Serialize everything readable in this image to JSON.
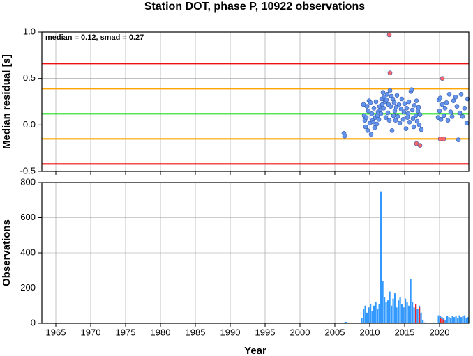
{
  "chart_data": [
    {
      "type": "scatter",
      "title": "Station DOT, phase P, 10922 observations",
      "ylabel": "Median residual [s]",
      "annotation": "median = 0.12, smad = 0.27",
      "xlim": [
        1963,
        2024.2
      ],
      "xticks": [
        1965,
        1970,
        1975,
        1980,
        1985,
        1990,
        1995,
        2000,
        2005,
        2010,
        2015,
        2020
      ],
      "ylim": [
        -0.5,
        1.0
      ],
      "yticks": [
        -0.5,
        {
          "value": 0,
          "label": "0.0"
        },
        0.5,
        {
          "value": 1,
          "label": "1.0"
        }
      ],
      "grid": true,
      "hlines": [
        {
          "value": 0.66,
          "color": "#ee1111"
        },
        {
          "value": 0.39,
          "color": "#ffa500"
        },
        {
          "value": 0.12,
          "color": "#22dd22"
        },
        {
          "value": -0.15,
          "color": "#ffa500"
        },
        {
          "value": -0.42,
          "color": "#ee1111"
        }
      ],
      "series": [
        {
          "color": "#6495ed",
          "x": [
            2006.3,
            2006.4,
            2009.1,
            2009.2,
            2009.3,
            2009.4,
            2009.5,
            2009.6,
            2009.7,
            2009.8,
            2009.9,
            2010.0,
            2010.1,
            2010.2,
            2010.3,
            2010.4,
            2010.5,
            2010.6,
            2010.7,
            2010.8,
            2010.9,
            2011.0,
            2011.1,
            2011.2,
            2011.3,
            2011.4,
            2011.5,
            2011.6,
            2011.7,
            2011.8,
            2011.9,
            2012.0,
            2012.1,
            2012.2,
            2012.3,
            2012.4,
            2012.5,
            2012.6,
            2012.7,
            2012.8,
            2012.9,
            2013.0,
            2013.1,
            2013.2,
            2013.3,
            2013.4,
            2013.5,
            2013.6,
            2013.7,
            2013.8,
            2013.9,
            2014.0,
            2014.2,
            2014.3,
            2014.5,
            2014.6,
            2014.8,
            2014.9,
            2015.0,
            2015.2,
            2015.3,
            2015.4,
            2015.5,
            2015.6,
            2015.7,
            2015.9,
            2016.0,
            2016.1,
            2016.2,
            2016.3,
            2016.4,
            2016.6,
            2016.7,
            2016.8,
            2016.9,
            2017.0,
            2017.1,
            2017.2,
            2017.4,
            2019.8,
            2019.9,
            2020.0,
            2020.1,
            2020.2,
            2020.4,
            2020.6,
            2020.8,
            2021.0,
            2021.2,
            2021.4,
            2021.6,
            2021.8,
            2022.0,
            2022.3,
            2022.5,
            2022.7,
            2022.9,
            2023.1,
            2023.3,
            2023.6,
            2023.9,
            2024.0
          ],
          "values": [
            -0.09,
            -0.12,
            0.22,
            0.1,
            0.05,
            -0.02,
            0.08,
            0.2,
            -0.06,
            0.15,
            0.26,
            0.02,
            0.24,
            -0.1,
            0.12,
            0.05,
            0.03,
            0.18,
            -0.03,
            0.08,
            0.25,
            0.01,
            0.1,
            0.14,
            0.06,
            0.2,
            0.16,
            0.12,
            0.28,
            0.22,
            0.35,
            0.18,
            0.3,
            0.25,
            0.08,
            0.27,
            0.33,
            0.13,
            0.22,
            0.05,
            0.37,
            0.2,
            0.31,
            -0.06,
            0.28,
            0.1,
            0.24,
            0.15,
            0.05,
            0.19,
            0.32,
            0.09,
            0.22,
            0.02,
            0.17,
            0.28,
            0.06,
            0.14,
            0.23,
            -0.04,
            0.18,
            0.08,
            0.12,
            0.25,
            0.03,
            0.36,
            0.38,
            0.16,
            0.07,
            -0.02,
            0.21,
            0.1,
            0.26,
            0.04,
            0.15,
            0.19,
            0.0,
            0.11,
            -0.05,
            0.08,
            0.27,
            0.15,
            0.29,
            0.06,
            0.22,
            0.1,
            0.18,
            0.24,
            0.05,
            0.33,
            0.14,
            0.09,
            0.26,
            0.3,
            0.2,
            -0.16,
            0.13,
            0.33,
            0.09,
            0.18,
            0.02,
            0.28
          ]
        },
        {
          "color": "#ff6666",
          "x": [
            2012.8,
            2012.9,
            2020.4,
            2016.7,
            2017.2,
            2020.1,
            2020.6
          ],
          "values": [
            0.97,
            0.56,
            0.5,
            -0.2,
            -0.22,
            -0.15,
            -0.15
          ]
        }
      ]
    },
    {
      "type": "histogram",
      "ylabel": "Observations",
      "xlabel": "Year",
      "xlim": [
        1963,
        2024.2
      ],
      "xticks": [
        1965,
        1970,
        1975,
        1980,
        1985,
        1990,
        1995,
        2000,
        2005,
        2010,
        2015,
        2020
      ],
      "ylim": [
        0,
        800
      ],
      "yticks": [
        0,
        200,
        400,
        600,
        800
      ],
      "grid": true,
      "bins": [
        2006,
        2006.25,
        2006.5,
        2006.75,
        2007,
        2007.25,
        2007.5,
        2007.75,
        2008,
        2008.25,
        2008.5,
        2008.75,
        2009,
        2009.25,
        2009.5,
        2009.75,
        2010,
        2010.25,
        2010.5,
        2010.75,
        2011,
        2011.25,
        2011.5,
        2011.75,
        2012,
        2012.25,
        2012.5,
        2012.75,
        2013,
        2013.25,
        2013.5,
        2013.75,
        2014,
        2014.25,
        2014.5,
        2014.75,
        2015,
        2015.25,
        2015.5,
        2015.75,
        2016,
        2016.25,
        2016.5,
        2016.75,
        2017,
        2017.25,
        2017.5,
        2017.75,
        2018,
        2018.25,
        2018.5,
        2018.75,
        2019,
        2019.25,
        2019.5,
        2019.75,
        2020,
        2020.25,
        2020.5,
        2020.75,
        2021,
        2021.25,
        2021.5,
        2021.75,
        2022,
        2022.25,
        2022.5,
        2022.75,
        2023,
        2023.25,
        2023.5,
        2023.75,
        2024,
        2024.25
      ],
      "series": [
        {
          "color": "#3399ff",
          "values": [
            0,
            5,
            8,
            0,
            0,
            0,
            0,
            0,
            2,
            0,
            3,
            30,
            80,
            100,
            60,
            90,
            110,
            70,
            100,
            120,
            80,
            110,
            750,
            240,
            150,
            120,
            130,
            180,
            100,
            140,
            170,
            90,
            130,
            150,
            110,
            90,
            140,
            120,
            100,
            250,
            120,
            90,
            110,
            80,
            100,
            60,
            20,
            5,
            0,
            0,
            0,
            0,
            5,
            0,
            0,
            45,
            40,
            35,
            30,
            20,
            40,
            35,
            30,
            40,
            35,
            40,
            30,
            45,
            35,
            40,
            45,
            30,
            35
          ]
        },
        {
          "color": "#ee2222",
          "values": [
            0,
            0,
            0,
            0,
            0,
            0,
            0,
            0,
            0,
            0,
            0,
            0,
            0,
            0,
            0,
            0,
            0,
            0,
            0,
            0,
            0,
            0,
            0,
            0,
            0,
            0,
            0,
            0,
            0,
            0,
            0,
            0,
            0,
            0,
            0,
            0,
            0,
            0,
            0,
            0,
            0,
            0,
            110,
            0,
            90,
            0,
            0,
            0,
            0,
            0,
            0,
            0,
            0,
            0,
            0,
            0,
            30,
            25,
            20,
            0,
            0,
            0,
            0,
            0,
            0,
            0,
            0,
            0,
            0,
            0,
            0,
            0,
            0
          ]
        }
      ]
    }
  ]
}
